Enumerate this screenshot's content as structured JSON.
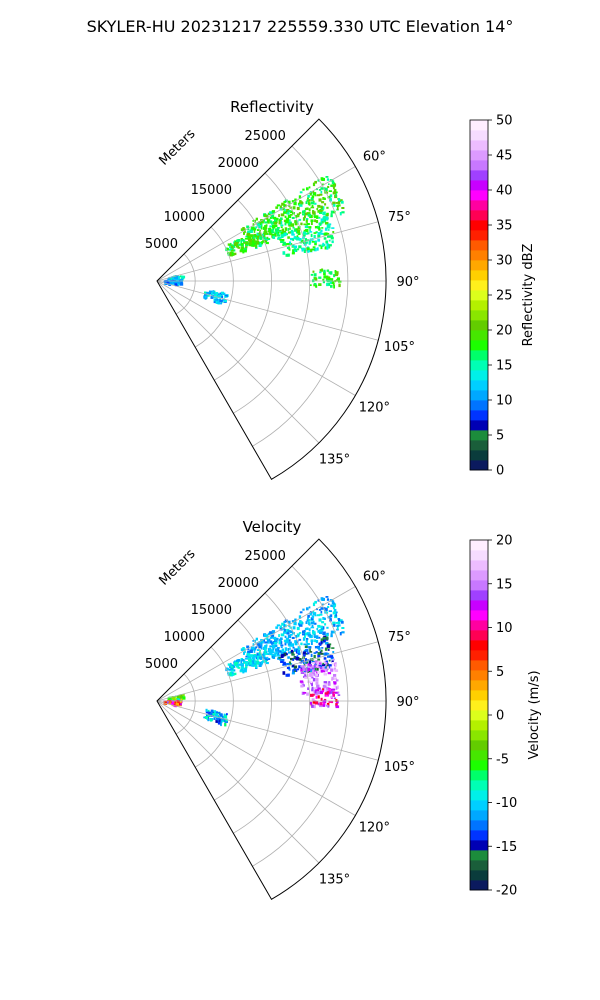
{
  "figure_title": "SKYLER-HU  20231217  225559.330 UTC Elevation 14°",
  "chart_data": [
    {
      "type": "polar-sector",
      "title": "Reflectivity",
      "range_label": "Meters",
      "range_ticks": [
        5000,
        10000,
        15000,
        20000,
        25000
      ],
      "range_max": 30000,
      "azimuth_range": [
        45,
        150
      ],
      "azimuth_ticks": [
        60,
        75,
        90,
        105,
        120,
        135
      ],
      "azimuth_tick_labels": [
        "60°",
        "75°",
        "90°",
        "105°",
        "120°",
        "135°"
      ],
      "grid": true,
      "colorbar": {
        "label": "Reflectivity dBZ",
        "min": 0,
        "max": 50,
        "ticks": [
          0,
          5,
          10,
          15,
          20,
          25,
          30,
          35,
          40,
          45,
          50
        ],
        "colormap": [
          "#0b1a5e",
          "#0a3c3c",
          "#1a5e3a",
          "#1c8c3c",
          "#0000b4",
          "#0034ff",
          "#0074ff",
          "#00a8ff",
          "#00cfff",
          "#00f0e8",
          "#00ffb4",
          "#00ff6a",
          "#1cff00",
          "#46e600",
          "#63cc00",
          "#8ae600",
          "#b4f000",
          "#dcff1c",
          "#fff01c",
          "#ffd000",
          "#ffa800",
          "#ff8000",
          "#ff5a00",
          "#ff2000",
          "#ff0000",
          "#ff0054",
          "#ff00a0",
          "#ff00ff",
          "#c800ff",
          "#a040ff",
          "#c878ff",
          "#dc9aff",
          "#ecbcff",
          "#f6dcff",
          "#ffeeff"
        ]
      },
      "echo_regions": [
        {
          "az": [
            58,
            70
          ],
          "range": [
            13000,
            26500
          ],
          "value_mean": 18,
          "value_spread": 3
        },
        {
          "az": [
            63,
            71
          ],
          "range": [
            10000,
            17000
          ],
          "value_mean": 18,
          "value_spread": 3
        },
        {
          "az": [
            69,
            79
          ],
          "range": [
            17000,
            24000
          ],
          "value_mean": 16,
          "value_spread": 3
        },
        {
          "az": [
            76,
            90
          ],
          "range": [
            1500,
            3500
          ],
          "value_mean": 13,
          "value_spread": 3
        },
        {
          "az": [
            90,
            103
          ],
          "range": [
            1000,
            3200
          ],
          "value_mean": 11,
          "value_spread": 3
        },
        {
          "az": [
            100,
            110
          ],
          "range": [
            6500,
            9500
          ],
          "value_mean": 12,
          "value_spread": 3
        },
        {
          "az": [
            86,
            92
          ],
          "range": [
            20000,
            24000
          ],
          "value_mean": 18,
          "value_spread": 3
        }
      ]
    },
    {
      "type": "polar-sector",
      "title": "Velocity",
      "range_label": "Meters",
      "range_ticks": [
        5000,
        10000,
        15000,
        20000,
        25000
      ],
      "range_max": 30000,
      "azimuth_range": [
        45,
        150
      ],
      "azimuth_ticks": [
        60,
        75,
        90,
        105,
        120,
        135
      ],
      "azimuth_tick_labels": [
        "60°",
        "75°",
        "90°",
        "105°",
        "120°",
        "135°"
      ],
      "grid": true,
      "colorbar": {
        "label": "Velocity (m/s)",
        "min": -20,
        "max": 20,
        "ticks": [
          -20,
          -15,
          -10,
          -5,
          0,
          5,
          10,
          15,
          20
        ],
        "colormap": [
          "#0b1a5e",
          "#0a3c3c",
          "#1a5e3a",
          "#1c8c3c",
          "#0000b4",
          "#0034ff",
          "#0074ff",
          "#00a8ff",
          "#00cfff",
          "#00f0e8",
          "#00ffb4",
          "#00ff6a",
          "#1cff00",
          "#46e600",
          "#63cc00",
          "#8ae600",
          "#b4f000",
          "#dcff1c",
          "#fff01c",
          "#ffd000",
          "#ffa800",
          "#ff8000",
          "#ff5a00",
          "#ff2000",
          "#ff0000",
          "#ff0054",
          "#ff00a0",
          "#ff00ff",
          "#c800ff",
          "#a040ff",
          "#c878ff",
          "#dc9aff",
          "#ecbcff",
          "#f6dcff",
          "#ffeeff"
        ]
      },
      "echo_regions": [
        {
          "az": [
            58,
            70
          ],
          "range": [
            13000,
            26500
          ],
          "value_mean": -11,
          "value_spread": 2
        },
        {
          "az": [
            63,
            71
          ],
          "range": [
            10000,
            17000
          ],
          "value_mean": -10,
          "value_spread": 2
        },
        {
          "az": [
            69,
            79
          ],
          "range": [
            17000,
            24000
          ],
          "value_mean": -14,
          "value_spread": 3
        },
        {
          "az": [
            76,
            88
          ],
          "range": [
            19000,
            24000
          ],
          "value_mean": 15,
          "value_spread": 3
        },
        {
          "az": [
            76,
            90
          ],
          "range": [
            1500,
            3500
          ],
          "value_mean": -3,
          "value_spread": 6
        },
        {
          "az": [
            90,
            103
          ],
          "range": [
            1000,
            3200
          ],
          "value_mean": 8,
          "value_spread": 6
        },
        {
          "az": [
            100,
            110
          ],
          "range": [
            6500,
            9500
          ],
          "value_mean": -11,
          "value_spread": 4
        },
        {
          "az": [
            86,
            92
          ],
          "range": [
            20000,
            24000
          ],
          "value_mean": 12,
          "value_spread": 4
        }
      ]
    }
  ]
}
